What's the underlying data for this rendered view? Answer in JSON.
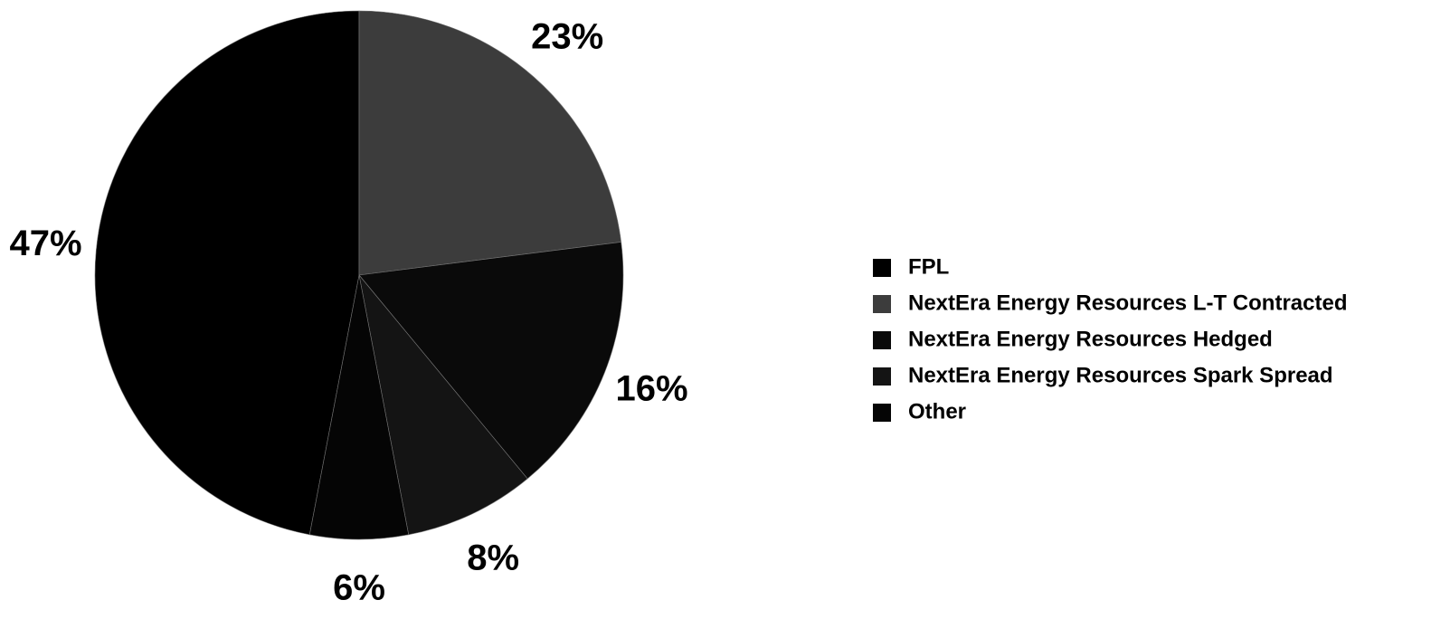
{
  "chart_data": {
    "type": "pie",
    "categories": [
      "FPL",
      "NextEra Energy Resources L-T Contracted",
      "NextEra Energy Resources Hedged",
      "NextEra Energy Resources Spark Spread",
      "Other"
    ],
    "values": [
      47,
      23,
      16,
      8,
      6
    ],
    "value_labels": [
      "47%",
      "23%",
      "16%",
      "8%",
      "6%"
    ],
    "colors": [
      "#000000",
      "#3c3c3c",
      "#0a0a0a",
      "#141414",
      "#050505"
    ],
    "legend": "right"
  }
}
